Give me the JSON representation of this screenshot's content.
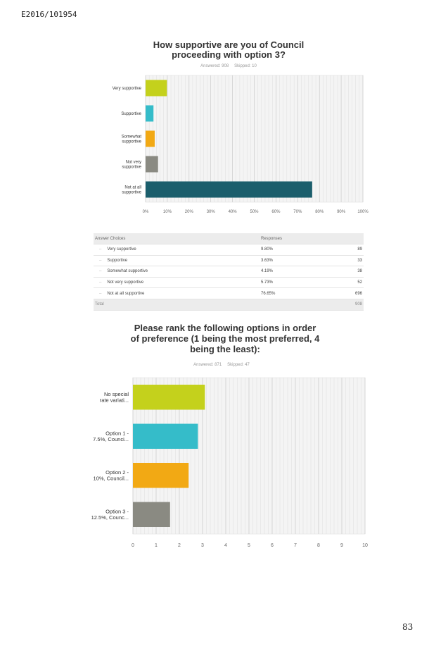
{
  "doc_ref": "E2016/101954",
  "page_number": "83",
  "colors": {
    "lime": "#c4d11c",
    "cyan": "#35bcc9",
    "orange": "#f2a914",
    "gray": "#8a8a82",
    "teal": "#1b5e6c"
  },
  "q1": {
    "title_line1": "How supportive are you of Council",
    "title_line2": "proceeding with option 3?",
    "answered": "Answered: 908",
    "skipped": "Skipped: 10"
  },
  "q2": {
    "title_line1": "Please rank the following options in order",
    "title_line2": "of preference (1 being the most preferred, 4",
    "title_line3": "being the least):",
    "answered": "Answered: 871",
    "skipped": "Skipped: 47"
  },
  "table": {
    "header_choice": "Answer Choices",
    "header_responses": "Responses",
    "rows": [
      {
        "dash": "–",
        "label": "Very supportive",
        "pct": "9.80%",
        "count": "89"
      },
      {
        "dash": "–",
        "label": "Supportive",
        "pct": "3.63%",
        "count": "33"
      },
      {
        "dash": "–",
        "label": "Somewhat supportive",
        "pct": "4.19%",
        "count": "38"
      },
      {
        "dash": "–",
        "label": "Not very supportive",
        "pct": "5.73%",
        "count": "52"
      },
      {
        "dash": "–",
        "label": "Not at all supportive",
        "pct": "76.65%",
        "count": "696"
      }
    ],
    "total_label": "Total",
    "total_count": "908"
  },
  "chart_data": [
    {
      "type": "bar",
      "orientation": "horizontal",
      "categories": [
        [
          "Very supportive"
        ],
        [
          "Supportive"
        ],
        [
          "Somewhat",
          "supportive"
        ],
        [
          "Not very",
          "supportive"
        ],
        [
          "Not at all",
          "supportive"
        ]
      ],
      "values": [
        9.8,
        3.63,
        4.19,
        5.73,
        76.65
      ],
      "colors": [
        "#c4d11c",
        "#35bcc9",
        "#f2a914",
        "#8a8a82",
        "#1b5e6c"
      ],
      "xlim": [
        0,
        100
      ],
      "xticks": [
        "0%",
        "10%",
        "20%",
        "30%",
        "40%",
        "50%",
        "60%",
        "70%",
        "80%",
        "90%",
        "100%"
      ],
      "grid": true
    },
    {
      "type": "bar",
      "orientation": "horizontal",
      "categories": [
        [
          "No special",
          "rate variati..."
        ],
        [
          "Option 1 -",
          "7.5%, Counci..."
        ],
        [
          "Option 2 -",
          "10%, Council..."
        ],
        [
          "Option 3 -",
          "12.5%, Counc..."
        ]
      ],
      "values": [
        3.1,
        2.8,
        2.4,
        1.6
      ],
      "colors": [
        "#c4d11c",
        "#35bcc9",
        "#f2a914",
        "#8a8a82"
      ],
      "xlim": [
        0,
        10
      ],
      "xticks": [
        "0",
        "1",
        "2",
        "3",
        "4",
        "5",
        "6",
        "7",
        "8",
        "9",
        "10"
      ],
      "grid": true
    }
  ]
}
